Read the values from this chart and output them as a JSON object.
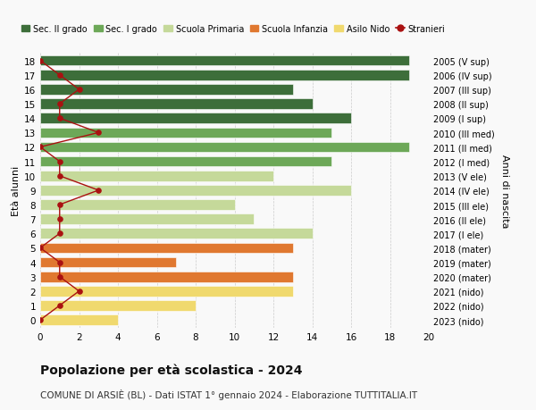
{
  "ages": [
    0,
    1,
    2,
    3,
    4,
    5,
    6,
    7,
    8,
    9,
    10,
    11,
    12,
    13,
    14,
    15,
    16,
    17,
    18
  ],
  "right_labels": [
    "2023 (nido)",
    "2022 (nido)",
    "2021 (nido)",
    "2020 (mater)",
    "2019 (mater)",
    "2018 (mater)",
    "2017 (I ele)",
    "2016 (II ele)",
    "2015 (III ele)",
    "2014 (IV ele)",
    "2013 (V ele)",
    "2012 (I med)",
    "2011 (II med)",
    "2010 (III med)",
    "2009 (I sup)",
    "2008 (II sup)",
    "2007 (III sup)",
    "2006 (IV sup)",
    "2005 (V sup)"
  ],
  "bar_values": [
    4,
    8,
    13,
    13,
    7,
    13,
    14,
    11,
    10,
    16,
    12,
    15,
    19,
    15,
    16,
    14,
    13,
    19,
    19
  ],
  "bar_colors": [
    "#f0d96e",
    "#f0d96e",
    "#f0d96e",
    "#e07830",
    "#e07830",
    "#e07830",
    "#c5d99a",
    "#c5d99a",
    "#c5d99a",
    "#c5d99a",
    "#c5d99a",
    "#6da858",
    "#6da858",
    "#6da858",
    "#3d6e3a",
    "#3d6e3a",
    "#3d6e3a",
    "#3d6e3a",
    "#3d6e3a"
  ],
  "stranieri_values": [
    0,
    1,
    2,
    1,
    1,
    0,
    1,
    1,
    1,
    3,
    1,
    1,
    0,
    3,
    1,
    1,
    2,
    1,
    0
  ],
  "legend_labels": [
    "Sec. II grado",
    "Sec. I grado",
    "Scuola Primaria",
    "Scuola Infanzia",
    "Asilo Nido",
    "Stranieri"
  ],
  "legend_colors": [
    "#3d6e3a",
    "#6da858",
    "#c5d99a",
    "#e07830",
    "#f0d96e",
    "#aa1111"
  ],
  "title": "Popolazione per età scolastica - 2024",
  "subtitle": "COMUNE DI ARSIÈ (BL) - Dati ISTAT 1° gennaio 2024 - Elaborazione TUTTITALIA.IT",
  "ylabel_left": "Età alunni",
  "ylabel_right": "Anni di nascita",
  "xlim": [
    0,
    20
  ],
  "xticks": [
    0,
    2,
    4,
    6,
    8,
    10,
    12,
    14,
    16,
    18,
    20
  ],
  "bg_color": "#f9f9f9",
  "grid_color": "#cccccc"
}
